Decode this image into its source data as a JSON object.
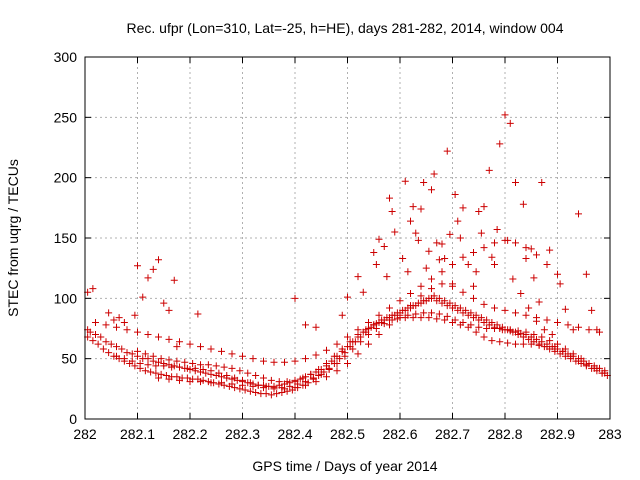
{
  "chart_data": {
    "type": "scatter",
    "title": "Rec. ufpr (Lon=310, Lat=-25, h=HE), days 281-282, 2014, window 004",
    "xlabel": "GPS time / Days of year 2014",
    "ylabel": "STEC from uqrg / TECUs",
    "xlim": [
      282,
      283
    ],
    "ylim": [
      0,
      300
    ],
    "grid": true,
    "legend": "none",
    "x_ticks": [
      "282",
      "282.1",
      "282.2",
      "282.3",
      "282.4",
      "282.5",
      "282.6",
      "282.7",
      "282.8",
      "282.9",
      "283"
    ],
    "y_ticks": [
      "0",
      "50",
      "100",
      "150",
      "200",
      "250",
      "300"
    ],
    "marker": "plus",
    "color": "#cc0000",
    "series": [
      {
        "x": [
          282.005,
          282.01,
          282.02,
          282.03,
          282.04,
          282.05,
          282.06,
          282.07,
          282.08,
          282.09,
          282.1,
          282.11,
          282.12,
          282.13,
          282.14,
          282.15,
          282.16,
          282.17,
          282.18,
          282.19,
          282.2,
          282.21,
          282.22,
          282.23,
          282.24,
          282.25,
          282.26,
          282.27,
          282.28,
          282.29,
          282.3,
          282.31,
          282.32,
          282.33,
          282.34,
          282.35,
          282.36,
          282.37,
          282.38,
          282.39,
          282.4,
          282.41,
          282.42,
          282.43,
          282.44,
          282.45,
          282.46,
          282.47,
          282.48,
          282.49,
          282.5,
          282.51,
          282.52,
          282.53,
          282.54,
          282.55,
          282.56,
          282.57,
          282.58,
          282.59,
          282.6,
          282.61,
          282.62,
          282.63,
          282.64,
          282.65,
          282.66,
          282.67,
          282.68,
          282.69,
          282.7,
          282.71,
          282.72,
          282.73,
          282.74,
          282.75,
          282.76,
          282.77,
          282.78,
          282.79,
          282.8,
          282.81,
          282.82,
          282.83,
          282.84,
          282.85,
          282.86,
          282.87,
          282.88,
          282.89,
          282.9,
          282.91,
          282.92,
          282.93,
          282.94,
          282.95,
          282.96,
          282.97,
          282.98,
          282.99
        ],
        "y": [
          74,
          72,
          70,
          68,
          64,
          62,
          60,
          58,
          55,
          54,
          52,
          50,
          50,
          48,
          47,
          46,
          45,
          44,
          43,
          42,
          41,
          40,
          39,
          38,
          37,
          36,
          35,
          34,
          33,
          32,
          31,
          30,
          29,
          28,
          28,
          27,
          27,
          28,
          29,
          30,
          31,
          33,
          35,
          37,
          39,
          41,
          44,
          48,
          52,
          56,
          60,
          64,
          68,
          72,
          75,
          78,
          80,
          82,
          84,
          86,
          88,
          90,
          92,
          94,
          96,
          98,
          100,
          98,
          96,
          94,
          92,
          90,
          88,
          86,
          84,
          82,
          80,
          78,
          76,
          75,
          74,
          73,
          72,
          71,
          70,
          68,
          66,
          64,
          62,
          60,
          58,
          56,
          54,
          52,
          50,
          48,
          46,
          44,
          42,
          40
        ]
      },
      {
        "x": [
          282.005,
          282.015,
          282.025,
          282.035,
          282.045,
          282.055,
          282.065,
          282.075,
          282.085,
          282.095,
          282.105,
          282.115,
          282.125,
          282.135,
          282.145,
          282.155,
          282.165,
          282.175,
          282.185,
          282.195,
          282.205,
          282.215,
          282.225,
          282.235,
          282.245,
          282.255,
          282.265,
          282.275,
          282.285,
          282.295,
          282.305,
          282.315,
          282.325,
          282.335,
          282.345,
          282.355,
          282.365,
          282.375,
          282.385,
          282.395,
          282.405,
          282.415,
          282.425,
          282.435,
          282.445,
          282.455,
          282.465,
          282.475,
          282.485,
          282.495,
          282.505,
          282.515,
          282.525,
          282.535,
          282.545,
          282.555,
          282.565,
          282.575,
          282.585,
          282.595,
          282.605,
          282.615,
          282.625,
          282.635,
          282.645,
          282.655,
          282.665,
          282.675,
          282.685,
          282.695,
          282.705,
          282.715,
          282.725,
          282.735,
          282.745,
          282.755,
          282.765,
          282.775,
          282.785,
          282.795,
          282.805,
          282.815,
          282.825,
          282.835,
          282.845,
          282.855,
          282.865,
          282.875,
          282.885,
          282.895,
          282.905,
          282.915,
          282.925,
          282.935,
          282.945,
          282.955,
          282.965,
          282.975,
          282.985,
          282.995
        ],
        "y": [
          68,
          65,
          62,
          58,
          55,
          52,
          50,
          48,
          46,
          44,
          42,
          40,
          39,
          38,
          37,
          36,
          35,
          35,
          34,
          34,
          33,
          33,
          32,
          31,
          30,
          29,
          28,
          27,
          26,
          25,
          24,
          23,
          22,
          21,
          21,
          20,
          21,
          22,
          23,
          24,
          26,
          28,
          30,
          33,
          36,
          39,
          42,
          46,
          50,
          55,
          60,
          64,
          68,
          72,
          76,
          79,
          82,
          84,
          86,
          88,
          90,
          92,
          94,
          96,
          98,
          100,
          102,
          100,
          98,
          96,
          94,
          92,
          90,
          88,
          86,
          84,
          82,
          80,
          78,
          76,
          74,
          72,
          70,
          68,
          66,
          64,
          62,
          60,
          58,
          56,
          54,
          52,
          50,
          48,
          46,
          44,
          42,
          40,
          38,
          36
        ]
      },
      {
        "x": [
          282.06,
          282.075,
          282.09,
          282.105,
          282.12,
          282.135,
          282.15,
          282.165,
          282.18,
          282.195,
          282.21,
          282.225,
          282.24,
          282.255,
          282.27,
          282.285,
          282.3,
          282.315,
          282.33,
          282.345,
          282.36,
          282.375,
          282.39,
          282.405,
          282.42,
          282.435,
          282.45,
          282.465,
          282.48,
          282.495,
          282.51,
          282.525,
          282.54,
          282.555,
          282.57,
          282.585,
          282.6,
          282.615,
          282.63,
          282.645,
          282.66,
          282.675,
          282.69,
          282.705,
          282.72,
          282.735,
          282.75,
          282.765,
          282.78,
          282.795,
          282.81,
          282.825,
          282.84,
          282.855,
          282.87,
          282.885,
          282.9,
          282.915,
          282.93,
          282.945,
          282.96,
          282.975,
          282.99
        ],
        "y": [
          52,
          50,
          48,
          46,
          45,
          44,
          44,
          43,
          43,
          42,
          42,
          41,
          40,
          38,
          36,
          34,
          32,
          30,
          28,
          27,
          26,
          26,
          27,
          29,
          31,
          34,
          37,
          41,
          46,
          52,
          58,
          64,
          70,
          75,
          79,
          82,
          84,
          86,
          87,
          88,
          88,
          87,
          85,
          82,
          80,
          78,
          76,
          75,
          75,
          74,
          74,
          73,
          72,
          70,
          68,
          65,
          62,
          58,
          54,
          50,
          46,
          42,
          38
        ]
      },
      {
        "x": [
          282.1,
          282.115,
          282.13,
          282.145,
          282.16,
          282.175,
          282.19,
          282.205,
          282.22,
          282.235,
          282.25,
          282.265,
          282.28,
          282.295,
          282.31,
          282.325,
          282.34,
          282.355,
          282.37,
          282.385,
          282.4,
          282.415,
          282.43,
          282.445,
          282.46,
          282.475,
          282.49,
          282.505,
          282.52,
          282.535,
          282.55,
          282.565,
          282.58,
          282.595,
          282.61,
          282.625,
          282.64,
          282.655,
          282.67,
          282.685,
          282.7,
          282.715,
          282.73,
          282.745,
          282.76,
          282.775,
          282.79,
          282.805,
          282.82,
          282.835,
          282.85,
          282.865,
          282.88,
          282.895,
          282.91,
          282.925,
          282.94,
          282.955,
          282.97,
          282.985
        ],
        "y": [
          56,
          54,
          52,
          50,
          49,
          48,
          47,
          46,
          45,
          45,
          44,
          43,
          42,
          40,
          38,
          36,
          34,
          32,
          31,
          31,
          32,
          34,
          37,
          41,
          46,
          52,
          58,
          64,
          70,
          74,
          78,
          80,
          82,
          83,
          84,
          84,
          84,
          84,
          83,
          82,
          80,
          78,
          76,
          72,
          68,
          65,
          64,
          63,
          62,
          62,
          62,
          61,
          60,
          58,
          56,
          52,
          48,
          45,
          42,
          38
        ]
      },
      {
        "x": [
          282.14,
          282.16,
          282.18,
          282.2,
          282.22,
          282.24,
          282.26,
          282.28,
          282.3,
          282.32,
          282.34,
          282.36,
          282.38,
          282.4,
          282.42,
          282.44,
          282.46,
          282.48,
          282.5,
          282.52,
          282.54,
          282.56,
          282.58,
          282.6,
          282.62,
          282.64,
          282.66,
          282.68,
          282.7,
          282.72,
          282.74,
          282.76,
          282.78,
          282.8,
          282.82,
          282.84,
          282.86,
          282.88,
          282.9,
          282.92,
          282.94,
          282.96,
          282.98
        ],
        "y": [
          34,
          33,
          32,
          31,
          31,
          30,
          30,
          29,
          28,
          27,
          26,
          25,
          25,
          26,
          28,
          31,
          35,
          40,
          46,
          54,
          62,
          70,
          78,
          86,
          94,
          102,
          108,
          112,
          110,
          105,
          100,
          95,
          92,
          90,
          88,
          86,
          84,
          82,
          80,
          78,
          76,
          74,
          72
        ]
      },
      {
        "x": [
          282.02,
          282.04,
          282.06,
          282.08,
          282.1,
          282.12,
          282.14,
          282.16,
          282.18,
          282.2,
          282.22,
          282.24,
          282.26,
          282.28,
          282.3,
          282.32,
          282.34,
          282.36,
          282.38,
          282.4,
          282.42,
          282.44,
          282.46,
          282.48,
          282.5,
          282.52,
          282.54,
          282.56,
          282.58,
          282.6,
          282.62,
          282.64,
          282.66,
          282.68,
          282.7,
          282.72,
          282.74,
          282.76,
          282.78,
          282.8,
          282.82,
          282.84,
          282.86,
          282.88,
          282.9
        ],
        "y": [
          80,
          78,
          76,
          74,
          72,
          70,
          68,
          66,
          64,
          62,
          60,
          58,
          56,
          54,
          52,
          50,
          48,
          47,
          47,
          48,
          50,
          53,
          57,
          62,
          68,
          74,
          80,
          86,
          92,
          98,
          104,
          110,
          116,
          122,
          128,
          134,
          138,
          142,
          146,
          148,
          146,
          142,
          136,
          128,
          120
        ]
      },
      {
        "x": [
          282.005,
          282.015,
          282.045,
          282.055,
          282.065,
          282.075,
          282.095,
          282.1,
          282.11,
          282.12,
          282.13,
          282.14,
          282.15,
          282.16,
          282.17,
          282.175,
          282.215,
          282.4,
          282.42,
          282.44,
          282.49,
          282.5,
          282.52,
          282.53,
          282.55,
          282.555,
          282.56,
          282.57,
          282.575,
          282.58,
          282.585,
          282.59,
          282.605,
          282.61,
          282.615,
          282.62,
          282.625,
          282.63,
          282.635,
          282.64,
          282.645,
          282.65,
          282.655,
          282.66,
          282.665,
          282.67,
          282.675,
          282.68,
          282.685,
          282.69,
          282.695,
          282.7,
          282.705,
          282.71,
          282.715,
          282.72,
          282.73,
          282.74,
          282.745,
          282.75,
          282.755,
          282.76,
          282.77,
          282.775,
          282.78,
          282.785,
          282.79,
          282.8,
          282.805,
          282.81,
          282.815,
          282.82,
          282.83,
          282.835,
          282.84,
          282.845,
          282.85,
          282.855,
          282.86,
          282.865,
          282.87,
          282.875,
          282.885,
          282.89,
          282.895,
          282.905,
          282.915,
          282.93,
          282.94,
          282.955,
          282.965,
          282.975
        ],
        "y": [
          105,
          108,
          88,
          82,
          84,
          80,
          86,
          127,
          101,
          117,
          124,
          132,
          96,
          90,
          115,
          60,
          87,
          100,
          78,
          76,
          86,
          101,
          118,
          105,
          138,
          128,
          149,
          143,
          118,
          183,
          172,
          155,
          133,
          197,
          122,
          164,
          176,
          154,
          148,
          174,
          196,
          125,
          139,
          190,
          203,
          146,
          132,
          145,
          133,
          222,
          153,
          112,
          186,
          164,
          150,
          175,
          128,
          110,
          122,
          172,
          154,
          176,
          206,
          134,
          128,
          157,
          228,
          252,
          148,
          245,
          116,
          196,
          104,
          178,
          133,
          92,
          141,
          117,
          81,
          97,
          196,
          74,
          140,
          70,
          60,
          112,
          91,
          74,
          170,
          120,
          90,
          74
        ]
      }
    ]
  }
}
